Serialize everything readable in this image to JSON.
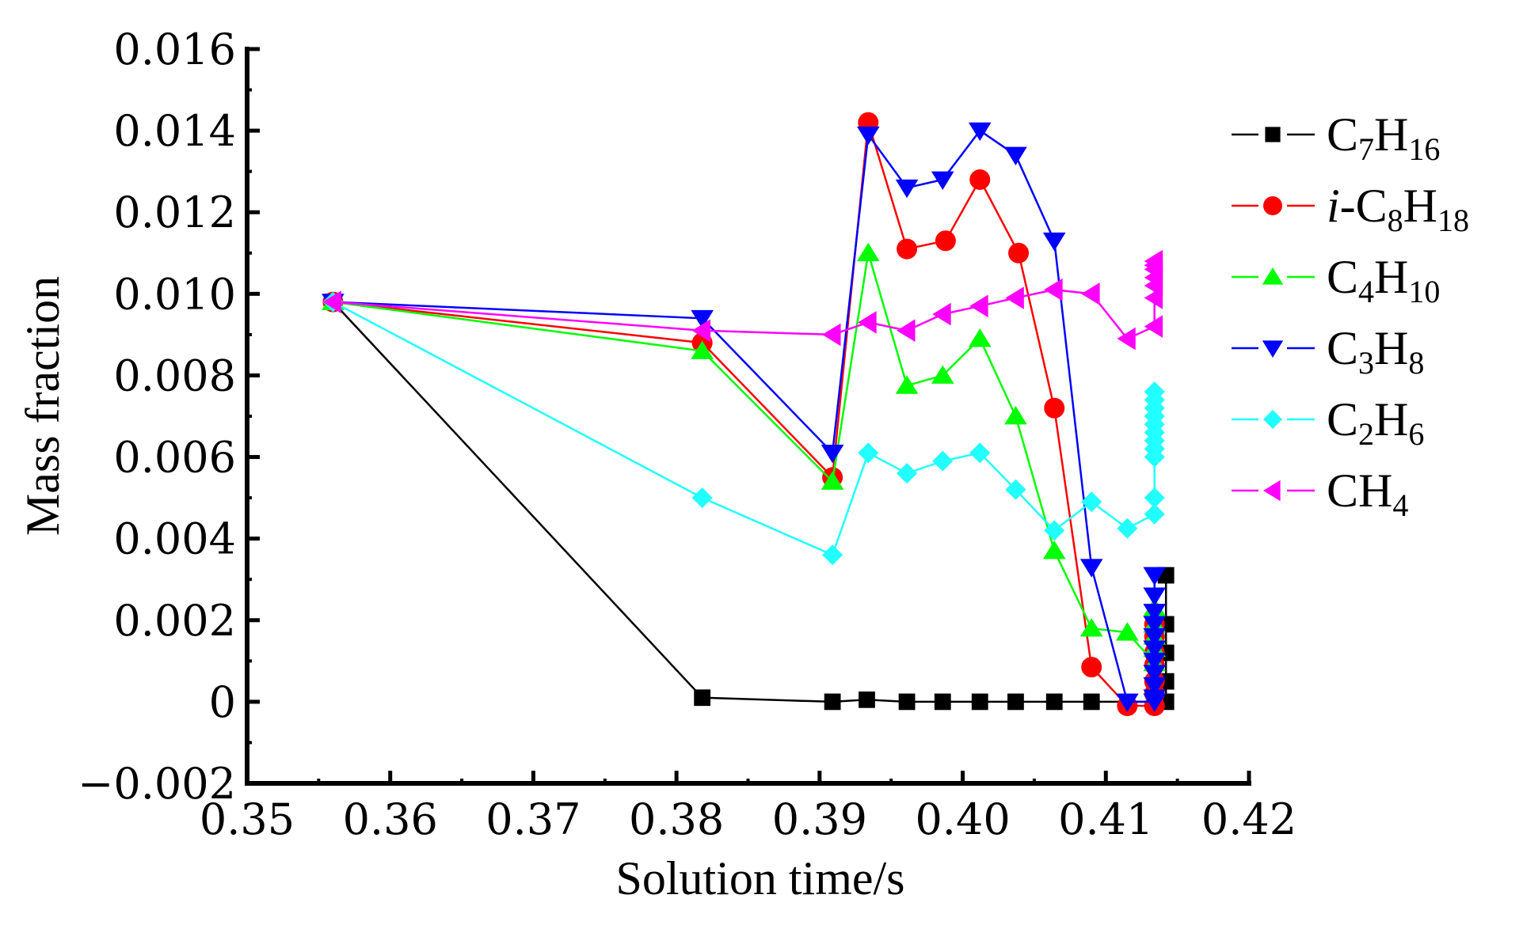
{
  "chart_data": {
    "type": "line",
    "title": "",
    "xlabel": "Solution time/s",
    "ylabel": "Mass fraction",
    "xlim": [
      0.35,
      0.42
    ],
    "ylim": [
      -0.002,
      0.016
    ],
    "xticks": [
      "0.35",
      "0.36",
      "0.37",
      "0.38",
      "0.39",
      "0.40",
      "0.41",
      "0.42"
    ],
    "xtick_values": [
      0.35,
      0.36,
      0.37,
      0.38,
      0.39,
      0.4,
      0.41,
      0.42
    ],
    "yticks": [
      "0.016",
      "0.014",
      "0.012",
      "0.010",
      "0.008",
      "0.006",
      "0.004",
      "0.002",
      "0",
      "−0.002"
    ],
    "ytick_values": [
      0.016,
      0.014,
      0.012,
      0.01,
      0.008,
      0.006,
      0.004,
      0.002,
      0,
      -0.002
    ],
    "grid": false,
    "legend_position": "right",
    "series": [
      {
        "name": "C7H16",
        "label_parts": [
          {
            "t": "C"
          },
          {
            "t": "7",
            "sub": true
          },
          {
            "t": "H"
          },
          {
            "t": "16",
            "sub": true
          }
        ],
        "color": "#000000",
        "marker": "square",
        "x": [
          0.356,
          0.3818,
          0.3909,
          0.3933,
          0.3961,
          0.3986,
          0.4012,
          0.4037,
          0.4064,
          0.409,
          0.4142,
          0.4142,
          0.4142,
          0.4142,
          0.4142
        ],
        "y": [
          0.0098,
          0.0001,
          0.0,
          5e-05,
          0.0,
          0.0,
          0.0,
          0.0,
          0.0,
          0.0,
          0.0,
          0.0005,
          0.0012,
          0.0019,
          0.0031
        ]
      },
      {
        "name": "i-C8H18",
        "label_parts": [
          {
            "t": "i",
            "italic": true
          },
          {
            "t": "-C"
          },
          {
            "t": "8",
            "sub": true
          },
          {
            "t": "H"
          },
          {
            "t": "18",
            "sub": true
          }
        ],
        "color": "#ff0000",
        "marker": "circle",
        "x": [
          0.356,
          0.3818,
          0.3909,
          0.3934,
          0.3961,
          0.3988,
          0.4012,
          0.4039,
          0.4064,
          0.409,
          0.4115,
          0.4134,
          0.4134,
          0.4134,
          0.4134,
          0.4134,
          0.4134,
          0.4134
        ],
        "y": [
          0.0098,
          0.0088,
          0.0055,
          0.0142,
          0.0111,
          0.0113,
          0.0128,
          0.011,
          0.0072,
          0.00085,
          -0.0001,
          -0.0001,
          0.0002,
          0.0005,
          0.0009,
          0.0012,
          0.0016,
          0.0019
        ]
      },
      {
        "name": "C4H10",
        "label_parts": [
          {
            "t": "C"
          },
          {
            "t": "4",
            "sub": true
          },
          {
            "t": "H"
          },
          {
            "t": "10",
            "sub": true
          }
        ],
        "color": "#00ff00",
        "marker": "triangle-up",
        "x": [
          0.356,
          0.3818,
          0.3909,
          0.3934,
          0.3961,
          0.3986,
          0.4012,
          0.4037,
          0.4064,
          0.409,
          0.4115,
          0.4134,
          0.4134,
          0.4134,
          0.4134,
          0.4134
        ],
        "y": [
          0.0098,
          0.0086,
          0.0054,
          0.011,
          0.00775,
          0.008,
          0.0089,
          0.007,
          0.0037,
          0.0018,
          0.0017,
          0.00095,
          0.0013,
          0.0016,
          0.0019,
          0.0023
        ]
      },
      {
        "name": "C3H8",
        "label_parts": [
          {
            "t": "C"
          },
          {
            "t": "3",
            "sub": true
          },
          {
            "t": "H"
          },
          {
            "t": "8",
            "sub": true
          }
        ],
        "color": "#0000ff",
        "marker": "triangle-down",
        "x": [
          0.356,
          0.3818,
          0.3909,
          0.3934,
          0.3961,
          0.3986,
          0.4012,
          0.4037,
          0.4064,
          0.409,
          0.4115,
          0.4134,
          0.4134,
          0.4134,
          0.4134,
          0.4134,
          0.4134,
          0.4134,
          0.4134,
          0.4134,
          0.4134,
          0.4134
        ],
        "y": [
          0.0098,
          0.0094,
          0.0061,
          0.0139,
          0.0126,
          0.0128,
          0.014,
          0.0134,
          0.0113,
          0.0033,
          0.0,
          0.0,
          0.0001,
          0.0004,
          0.0007,
          0.001,
          0.0013,
          0.0016,
          0.0019,
          0.0022,
          0.0026,
          0.0031
        ]
      },
      {
        "name": "C2H6",
        "label_parts": [
          {
            "t": "C"
          },
          {
            "t": "2",
            "sub": true
          },
          {
            "t": "H"
          },
          {
            "t": "6",
            "sub": true
          }
        ],
        "color": "#22ffff",
        "marker": "diamond",
        "x": [
          0.356,
          0.3818,
          0.3909,
          0.3934,
          0.3961,
          0.3986,
          0.4012,
          0.4037,
          0.4064,
          0.409,
          0.4115,
          0.4134,
          0.4134,
          0.4134,
          0.4134,
          0.4134,
          0.4134,
          0.4134,
          0.4134,
          0.4134,
          0.4134,
          0.4134
        ],
        "y": [
          0.0098,
          0.005,
          0.0036,
          0.0061,
          0.0056,
          0.0059,
          0.0061,
          0.0052,
          0.0042,
          0.0049,
          0.00425,
          0.0046,
          0.005,
          0.006,
          0.0062,
          0.0064,
          0.0066,
          0.0068,
          0.007,
          0.0072,
          0.0074,
          0.0076
        ]
      },
      {
        "name": "CH4",
        "label_parts": [
          {
            "t": "CH"
          },
          {
            "t": "4",
            "sub": true
          }
        ],
        "color": "#ff00ff",
        "marker": "triangle-left",
        "x": [
          0.356,
          0.3818,
          0.3909,
          0.3934,
          0.3961,
          0.3986,
          0.4012,
          0.4037,
          0.4064,
          0.409,
          0.4115,
          0.4134,
          0.4134,
          0.4134,
          0.4134,
          0.4134,
          0.4134,
          0.4134
        ],
        "y": [
          0.0098,
          0.0091,
          0.009,
          0.0093,
          0.0091,
          0.0095,
          0.0097,
          0.0099,
          0.0101,
          0.01,
          0.0089,
          0.0092,
          0.0099,
          0.0102,
          0.0104,
          0.0106,
          0.0107,
          0.0108
        ]
      }
    ]
  }
}
